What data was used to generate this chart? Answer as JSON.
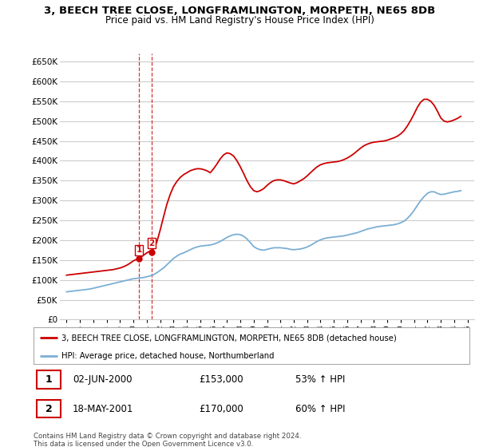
{
  "title": "3, BEECH TREE CLOSE, LONGFRAMLINGTON, MORPETH, NE65 8DB",
  "subtitle": "Price paid vs. HM Land Registry's House Price Index (HPI)",
  "legend_entry1": "3, BEECH TREE CLOSE, LONGFRAMLINGTON, MORPETH, NE65 8DB (detached house)",
  "legend_entry2": "HPI: Average price, detached house, Northumberland",
  "transactions": [
    {
      "label": "1",
      "date": "02-JUN-2000",
      "price": 153000,
      "hpi_pct": "53% ↑ HPI",
      "x": 2000.42
    },
    {
      "label": "2",
      "date": "18-MAY-2001",
      "price": 170000,
      "hpi_pct": "60% ↑ HPI",
      "x": 2001.38
    }
  ],
  "footnote": "Contains HM Land Registry data © Crown copyright and database right 2024.\nThis data is licensed under the Open Government Licence v3.0.",
  "ylim": [
    0,
    670000
  ],
  "yticks": [
    0,
    50000,
    100000,
    150000,
    200000,
    250000,
    300000,
    350000,
    400000,
    450000,
    500000,
    550000,
    600000,
    650000
  ],
  "xlim": [
    1994.5,
    2025.5
  ],
  "red_color": "#cc0000",
  "blue_color": "#7bafd4",
  "vline_color": "#cc0000",
  "background_color": "#ffffff",
  "grid_color": "#cccccc",
  "hpi_x": [
    1995,
    1995.25,
    1995.5,
    1995.75,
    1996,
    1996.25,
    1996.5,
    1996.75,
    1997,
    1997.25,
    1997.5,
    1997.75,
    1998,
    1998.25,
    1998.5,
    1998.75,
    1999,
    1999.25,
    1999.5,
    1999.75,
    2000,
    2000.25,
    2000.5,
    2000.75,
    2001,
    2001.25,
    2001.5,
    2001.75,
    2002,
    2002.25,
    2002.5,
    2002.75,
    2003,
    2003.25,
    2003.5,
    2003.75,
    2004,
    2004.25,
    2004.5,
    2004.75,
    2005,
    2005.25,
    2005.5,
    2005.75,
    2006,
    2006.25,
    2006.5,
    2006.75,
    2007,
    2007.25,
    2007.5,
    2007.75,
    2008,
    2008.25,
    2008.5,
    2008.75,
    2009,
    2009.25,
    2009.5,
    2009.75,
    2010,
    2010.25,
    2010.5,
    2010.75,
    2011,
    2011.25,
    2011.5,
    2011.75,
    2012,
    2012.25,
    2012.5,
    2012.75,
    2013,
    2013.25,
    2013.5,
    2013.75,
    2014,
    2014.25,
    2014.5,
    2014.75,
    2015,
    2015.25,
    2015.5,
    2015.75,
    2016,
    2016.25,
    2016.5,
    2016.75,
    2017,
    2017.25,
    2017.5,
    2017.75,
    2018,
    2018.25,
    2018.5,
    2018.75,
    2019,
    2019.25,
    2019.5,
    2019.75,
    2020,
    2020.25,
    2020.5,
    2020.75,
    2021,
    2021.25,
    2021.5,
    2021.75,
    2022,
    2022.25,
    2022.5,
    2022.75,
    2023,
    2023.25,
    2023.5,
    2023.75,
    2024,
    2024.25,
    2024.5
  ],
  "hpi_y": [
    70000,
    71000,
    72000,
    73000,
    74000,
    75000,
    76000,
    77000,
    79000,
    81000,
    83000,
    85000,
    87000,
    89000,
    91000,
    93000,
    95000,
    97000,
    99000,
    101000,
    103000,
    104000,
    105000,
    106000,
    108000,
    110000,
    113000,
    118000,
    124000,
    130000,
    138000,
    146000,
    154000,
    160000,
    165000,
    168000,
    172000,
    176000,
    180000,
    183000,
    185000,
    186000,
    187000,
    188000,
    190000,
    193000,
    197000,
    202000,
    207000,
    211000,
    214000,
    215000,
    214000,
    210000,
    203000,
    194000,
    184000,
    179000,
    176000,
    175000,
    177000,
    179000,
    181000,
    181000,
    181000,
    180000,
    179000,
    177000,
    176000,
    177000,
    178000,
    180000,
    183000,
    187000,
    192000,
    197000,
    201000,
    204000,
    206000,
    207000,
    208000,
    209000,
    210000,
    211000,
    213000,
    215000,
    217000,
    219000,
    222000,
    225000,
    228000,
    230000,
    232000,
    234000,
    235000,
    236000,
    237000,
    238000,
    239000,
    241000,
    244000,
    248000,
    255000,
    264000,
    275000,
    288000,
    300000,
    310000,
    318000,
    322000,
    322000,
    318000,
    315000,
    316000,
    318000,
    320000,
    322000,
    323000,
    325000
  ],
  "price_x": [
    1995,
    1995.25,
    1995.5,
    1995.75,
    1996,
    1996.25,
    1996.5,
    1996.75,
    1997,
    1997.25,
    1997.5,
    1997.75,
    1998,
    1998.25,
    1998.5,
    1998.75,
    1999,
    1999.25,
    1999.5,
    1999.75,
    2000,
    2000.25,
    2000.5,
    2000.75,
    2001,
    2001.25,
    2001.5,
    2001.75,
    2002,
    2002.25,
    2002.5,
    2002.75,
    2003,
    2003.25,
    2003.5,
    2003.75,
    2004,
    2004.25,
    2004.5,
    2004.75,
    2005,
    2005.25,
    2005.5,
    2005.75,
    2006,
    2006.25,
    2006.5,
    2006.75,
    2007,
    2007.25,
    2007.5,
    2007.75,
    2008,
    2008.25,
    2008.5,
    2008.75,
    2009,
    2009.25,
    2009.5,
    2009.75,
    2010,
    2010.25,
    2010.5,
    2010.75,
    2011,
    2011.25,
    2011.5,
    2011.75,
    2012,
    2012.25,
    2012.5,
    2012.75,
    2013,
    2013.25,
    2013.5,
    2013.75,
    2014,
    2014.25,
    2014.5,
    2014.75,
    2015,
    2015.25,
    2015.5,
    2015.75,
    2016,
    2016.25,
    2016.5,
    2016.75,
    2017,
    2017.25,
    2017.5,
    2017.75,
    2018,
    2018.25,
    2018.5,
    2018.75,
    2019,
    2019.25,
    2019.5,
    2019.75,
    2020,
    2020.25,
    2020.5,
    2020.75,
    2021,
    2021.25,
    2021.5,
    2021.75,
    2022,
    2022.25,
    2022.5,
    2022.75,
    2023,
    2023.25,
    2023.5,
    2023.75,
    2024,
    2024.25,
    2024.5
  ],
  "price_y": [
    112000,
    113000,
    114000,
    115000,
    116000,
    117000,
    118000,
    119000,
    120000,
    121000,
    122000,
    123000,
    124000,
    125000,
    126000,
    128000,
    130000,
    133000,
    137000,
    142000,
    148000,
    152000,
    156000,
    162000,
    168000,
    173000,
    178000,
    195000,
    225000,
    258000,
    290000,
    315000,
    335000,
    348000,
    358000,
    365000,
    370000,
    375000,
    378000,
    380000,
    380000,
    378000,
    375000,
    370000,
    380000,
    392000,
    405000,
    415000,
    420000,
    418000,
    412000,
    400000,
    385000,
    368000,
    350000,
    335000,
    325000,
    322000,
    325000,
    330000,
    338000,
    345000,
    350000,
    352000,
    352000,
    350000,
    347000,
    344000,
    342000,
    345000,
    350000,
    355000,
    362000,
    370000,
    378000,
    385000,
    390000,
    393000,
    395000,
    396000,
    397000,
    398000,
    400000,
    403000,
    407000,
    412000,
    418000,
    425000,
    432000,
    438000,
    442000,
    445000,
    447000,
    448000,
    449000,
    450000,
    452000,
    455000,
    458000,
    462000,
    468000,
    476000,
    488000,
    502000,
    518000,
    535000,
    548000,
    555000,
    555000,
    550000,
    540000,
    525000,
    508000,
    500000,
    498000,
    500000,
    503000,
    507000,
    512000
  ]
}
